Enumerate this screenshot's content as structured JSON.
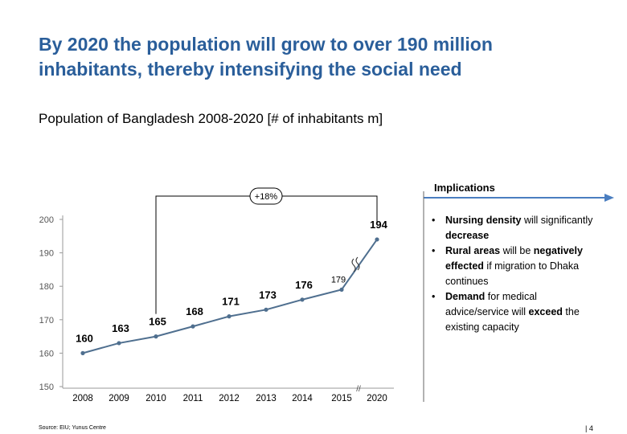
{
  "header": {
    "title": "By 2020 the population will grow to over 190 million inhabitants, thereby intensifying the social need",
    "subtitle": "Population of Bangladesh 2008-2020 [# of inhabitants m]"
  },
  "chart_data": {
    "type": "line",
    "title": "Population of Bangladesh 2008-2020 [# of inhabitants m]",
    "categories": [
      "2008",
      "2009",
      "2010",
      "2011",
      "2012",
      "2013",
      "2014",
      "2015",
      "2020"
    ],
    "values": [
      160,
      163,
      165,
      168,
      171,
      173,
      176,
      179,
      194
    ],
    "ylim": [
      150,
      200
    ],
    "yticks": [
      150,
      160,
      170,
      180,
      190,
      200
    ],
    "xlabel": "",
    "ylabel": "",
    "growth_label": "+18%",
    "axis_break": true,
    "line_color": "#4f6f8f",
    "grid": false
  },
  "implications": {
    "title": "Implications",
    "arrow_color": "#4a7ec0",
    "items": [
      {
        "bold": "Nursing density",
        "text": " will significantly ",
        "bold2": "decrease",
        "text2": ""
      },
      {
        "bold": "Rural areas",
        "text": " will be ",
        "bold2": "negatively effected",
        "text2": " if migration to Dhaka continues"
      },
      {
        "bold": "Demand",
        "text": " for medical advice/service will ",
        "bold2": "exceed",
        "text2": " the existing capacity"
      }
    ]
  },
  "footer": {
    "source": "Source: EIU; Yunus Centre",
    "page": "| 4"
  },
  "colors": {
    "title": "#2a5e9a",
    "axis": "#999999"
  }
}
